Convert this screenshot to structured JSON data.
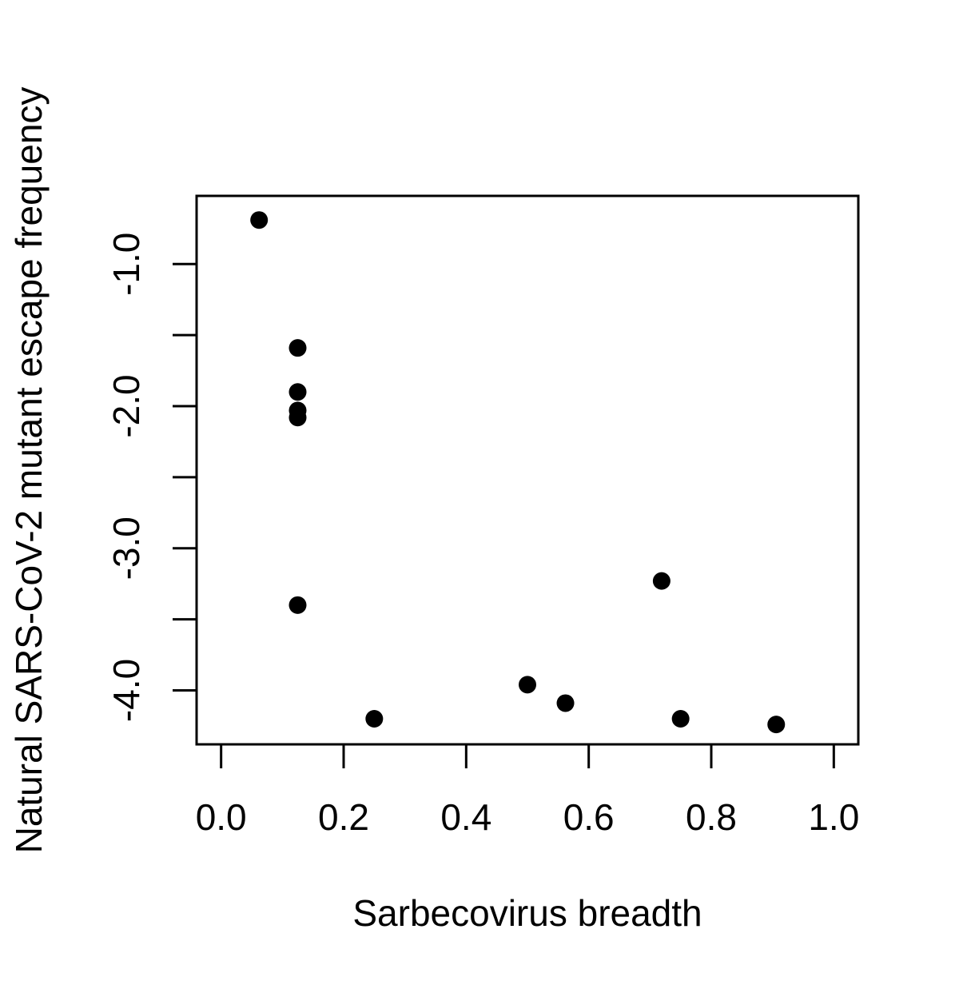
{
  "chart_data": {
    "type": "scatter",
    "title": "",
    "xlabel": "Sarbecovirus breadth",
    "ylabel": "Natural SARS-CoV-2 mutant escape frequency",
    "xlim": [
      -0.04,
      1.04
    ],
    "ylim": [
      -4.38,
      -0.52
    ],
    "x_ticks": [
      0.0,
      0.2,
      0.4,
      0.6,
      0.8,
      1.0
    ],
    "x_tick_labels": [
      "0.0",
      "0.2",
      "0.4",
      "0.6",
      "0.8",
      "1.0"
    ],
    "y_ticks": [
      -1.0,
      -1.5,
      -2.0,
      -2.5,
      -3.0,
      -3.5,
      -4.0
    ],
    "y_tick_labels": [
      "-1.0",
      "",
      "-2.0",
      "",
      "-3.0",
      "",
      "-4.0"
    ],
    "grid": false,
    "legend": "none",
    "marker_color": "#000000",
    "points": [
      {
        "x": 0.062,
        "y": -0.69
      },
      {
        "x": 0.125,
        "y": -1.59
      },
      {
        "x": 0.125,
        "y": -1.9
      },
      {
        "x": 0.125,
        "y": -2.03
      },
      {
        "x": 0.125,
        "y": -2.08
      },
      {
        "x": 0.125,
        "y": -3.4
      },
      {
        "x": 0.25,
        "y": -4.2
      },
      {
        "x": 0.5,
        "y": -3.96
      },
      {
        "x": 0.562,
        "y": -4.09
      },
      {
        "x": 0.719,
        "y": -3.23
      },
      {
        "x": 0.75,
        "y": -4.2
      },
      {
        "x": 0.906,
        "y": -4.24
      }
    ]
  }
}
